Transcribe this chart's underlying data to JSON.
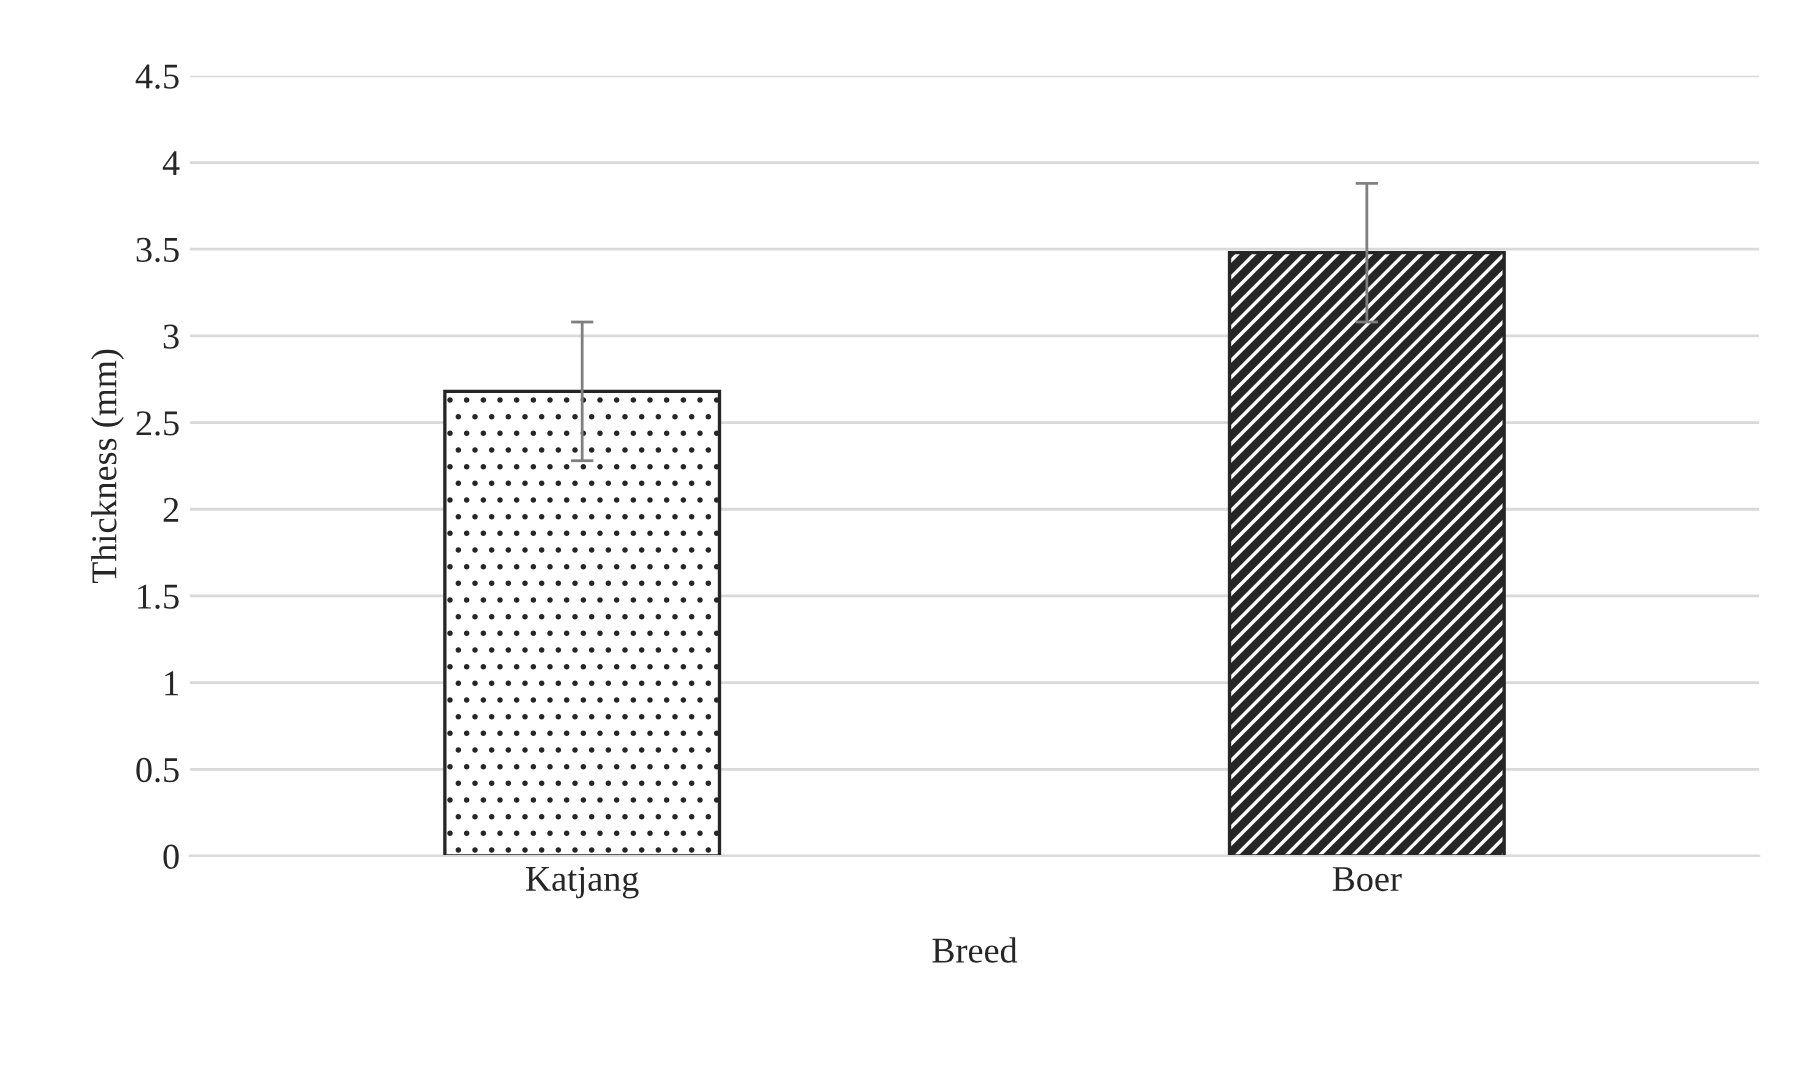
{
  "chart_data": {
    "type": "bar",
    "xlabel": "Breed",
    "ylabel": "Thickness (mm)",
    "categories": [
      "Katjang",
      "Boer"
    ],
    "values": [
      2.68,
      3.48
    ],
    "errors": [
      0.4,
      0.4
    ],
    "colors": [
      "#262626",
      "#262626"
    ],
    "ylim": [
      0,
      4.5
    ],
    "yticks": [
      0,
      0.5,
      1,
      1.5,
      2,
      2.5,
      3,
      3.5,
      4,
      4.5
    ],
    "grid": "y",
    "legend": false
  }
}
